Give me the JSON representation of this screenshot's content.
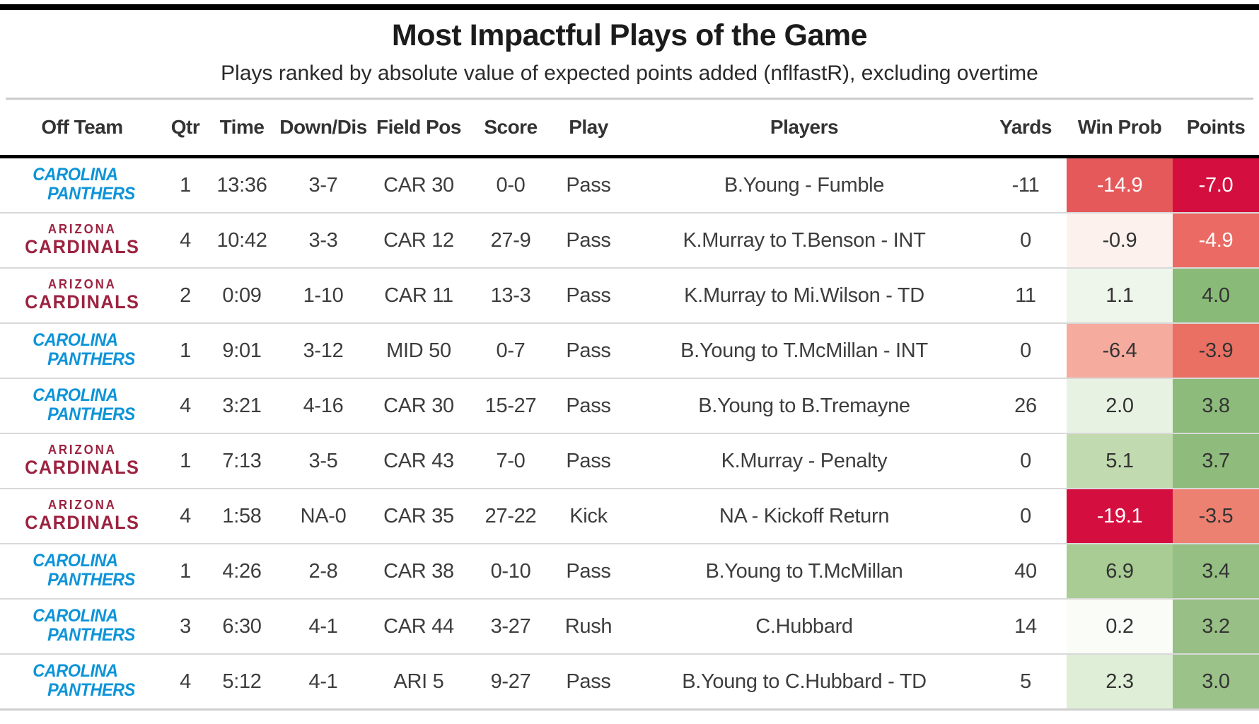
{
  "header": {
    "title": "Most Impactful Plays of the Game",
    "subtitle": "Plays ranked by absolute value of expected points added (nflfastR), excluding overtime"
  },
  "teams": {
    "CAR": {
      "lines": [
        "CAROLINA",
        "PANTHERS"
      ],
      "color": "#0d94d8"
    },
    "ARI": {
      "lines": [
        "ARIZONA",
        "CARDINALS"
      ],
      "color": "#9c2340"
    }
  },
  "table": {
    "columns": [
      "Off Team",
      "Qtr",
      "Time",
      "Down/Dis",
      "Field Pos",
      "Score",
      "Play",
      "Players",
      "Yards",
      "Win Prob",
      "Points"
    ],
    "rows": [
      {
        "team": "CAR",
        "qtr": "1",
        "time": "13:36",
        "down_dis": "3-7",
        "field_pos": "CAR 30",
        "score": "0-0",
        "play": "Pass",
        "players": "B.Young - Fumble",
        "yards": "-11",
        "win_prob": {
          "value": "-14.9",
          "bg": "#e5595a",
          "fg": "#ffffff"
        },
        "points": {
          "value": "-7.0",
          "bg": "#d40f3f",
          "fg": "#ffffff"
        }
      },
      {
        "team": "ARI",
        "qtr": "4",
        "time": "10:42",
        "down_dis": "3-3",
        "field_pos": "CAR 12",
        "score": "27-9",
        "play": "Pass",
        "players": "K.Murray to T.Benson - INT",
        "yards": "0",
        "win_prob": {
          "value": "-0.9",
          "bg": "#fdf1ee",
          "fg": "#333333"
        },
        "points": {
          "value": "-4.9",
          "bg": "#eb6a63",
          "fg": "#ffffff"
        }
      },
      {
        "team": "ARI",
        "qtr": "2",
        "time": "0:09",
        "down_dis": "1-10",
        "field_pos": "CAR 11",
        "score": "13-3",
        "play": "Pass",
        "players": "K.Murray to Mi.Wilson - TD",
        "yards": "11",
        "win_prob": {
          "value": "1.1",
          "bg": "#eef5ea",
          "fg": "#333333"
        },
        "points": {
          "value": "4.0",
          "bg": "#8aba78",
          "fg": "#333333"
        }
      },
      {
        "team": "CAR",
        "qtr": "1",
        "time": "9:01",
        "down_dis": "3-12",
        "field_pos": "MID 50",
        "score": "0-7",
        "play": "Pass",
        "players": "B.Young to T.McMillan - INT",
        "yards": "0",
        "win_prob": {
          "value": "-6.4",
          "bg": "#f6ab9f",
          "fg": "#333333"
        },
        "points": {
          "value": "-3.9",
          "bg": "#ea7063",
          "fg": "#333333"
        }
      },
      {
        "team": "CAR",
        "qtr": "4",
        "time": "3:21",
        "down_dis": "4-16",
        "field_pos": "CAR 30",
        "score": "15-27",
        "play": "Pass",
        "players": "B.Young to B.Tremayne",
        "yards": "26",
        "win_prob": {
          "value": "2.0",
          "bg": "#e8f2e3",
          "fg": "#333333"
        },
        "points": {
          "value": "3.8",
          "bg": "#8dbb7b",
          "fg": "#333333"
        }
      },
      {
        "team": "ARI",
        "qtr": "1",
        "time": "7:13",
        "down_dis": "3-5",
        "field_pos": "CAR 43",
        "score": "7-0",
        "play": "Pass",
        "players": "K.Murray - Penalty",
        "yards": "0",
        "win_prob": {
          "value": "5.1",
          "bg": "#c1daaf",
          "fg": "#333333"
        },
        "points": {
          "value": "3.7",
          "bg": "#8fbc7d",
          "fg": "#333333"
        }
      },
      {
        "team": "ARI",
        "qtr": "4",
        "time": "1:58",
        "down_dis": "NA-0",
        "field_pos": "CAR 35",
        "score": "27-22",
        "play": "Kick",
        "players": "NA - Kickoff Return",
        "yards": "0",
        "win_prob": {
          "value": "-19.1",
          "bg": "#d40f3f",
          "fg": "#ffffff"
        },
        "points": {
          "value": "-3.5",
          "bg": "#ec8172",
          "fg": "#333333"
        }
      },
      {
        "team": "CAR",
        "qtr": "1",
        "time": "4:26",
        "down_dis": "2-8",
        "field_pos": "CAR 38",
        "score": "0-10",
        "play": "Pass",
        "players": "B.Young to T.McMillan",
        "yards": "40",
        "win_prob": {
          "value": "6.9",
          "bg": "#a8cc93",
          "fg": "#333333"
        },
        "points": {
          "value": "3.4",
          "bg": "#95bf83",
          "fg": "#333333"
        }
      },
      {
        "team": "CAR",
        "qtr": "3",
        "time": "6:30",
        "down_dis": "4-1",
        "field_pos": "CAR 44",
        "score": "3-27",
        "play": "Rush",
        "players": "C.Hubbard",
        "yards": "14",
        "win_prob": {
          "value": "0.2",
          "bg": "#fafcf7",
          "fg": "#333333"
        },
        "points": {
          "value": "3.2",
          "bg": "#98c086",
          "fg": "#333333"
        }
      },
      {
        "team": "CAR",
        "qtr": "4",
        "time": "5:12",
        "down_dis": "4-1",
        "field_pos": "ARI 5",
        "score": "9-27",
        "play": "Pass",
        "players": "B.Young to C.Hubbard - TD",
        "yards": "5",
        "win_prob": {
          "value": "2.3",
          "bg": "#dfeed6",
          "fg": "#333333"
        },
        "points": {
          "value": "3.0",
          "bg": "#9bc289",
          "fg": "#333333"
        }
      }
    ]
  },
  "chart_data": {
    "type": "table",
    "title": "Most Impactful Plays of the Game",
    "subtitle": "Plays ranked by absolute value of expected points added (nflfastR), excluding overtime",
    "columns": [
      "Off Team",
      "Qtr",
      "Time",
      "Down/Dis",
      "Field Pos",
      "Score",
      "Play",
      "Players",
      "Yards",
      "Win Prob",
      "Points"
    ],
    "rows": [
      [
        "Carolina Panthers",
        1,
        "13:36",
        "3-7",
        "CAR 30",
        "0-0",
        "Pass",
        "B.Young - Fumble",
        -11,
        -14.9,
        -7.0
      ],
      [
        "Arizona Cardinals",
        4,
        "10:42",
        "3-3",
        "CAR 12",
        "27-9",
        "Pass",
        "K.Murray to T.Benson - INT",
        0,
        -0.9,
        -4.9
      ],
      [
        "Arizona Cardinals",
        2,
        "0:09",
        "1-10",
        "CAR 11",
        "13-3",
        "Pass",
        "K.Murray to Mi.Wilson - TD",
        11,
        1.1,
        4.0
      ],
      [
        "Carolina Panthers",
        1,
        "9:01",
        "3-12",
        "MID 50",
        "0-7",
        "Pass",
        "B.Young to T.McMillan - INT",
        0,
        -6.4,
        -3.9
      ],
      [
        "Carolina Panthers",
        4,
        "3:21",
        "4-16",
        "CAR 30",
        "15-27",
        "Pass",
        "B.Young to B.Tremayne",
        26,
        2.0,
        3.8
      ],
      [
        "Arizona Cardinals",
        1,
        "7:13",
        "3-5",
        "CAR 43",
        "7-0",
        "Pass",
        "K.Murray - Penalty",
        0,
        5.1,
        3.7
      ],
      [
        "Arizona Cardinals",
        4,
        "1:58",
        "NA-0",
        "CAR 35",
        "27-22",
        "Kick",
        "NA - Kickoff Return",
        0,
        -19.1,
        -3.5
      ],
      [
        "Carolina Panthers",
        1,
        "4:26",
        "2-8",
        "CAR 38",
        "0-10",
        "Pass",
        "B.Young to T.McMillan",
        40,
        6.9,
        3.4
      ],
      [
        "Carolina Panthers",
        3,
        "6:30",
        "4-1",
        "CAR 44",
        "3-27",
        "Rush",
        "C.Hubbard",
        14,
        0.2,
        3.2
      ],
      [
        "Carolina Panthers",
        4,
        "5:12",
        "4-1",
        "ARI 5",
        "9-27",
        "Pass",
        "B.Young to C.Hubbard - TD",
        5,
        2.3,
        3.0
      ]
    ],
    "color_scale_note": "Win Prob and Points cells shaded on red-green diverging scale (negative = red, positive = green)"
  }
}
